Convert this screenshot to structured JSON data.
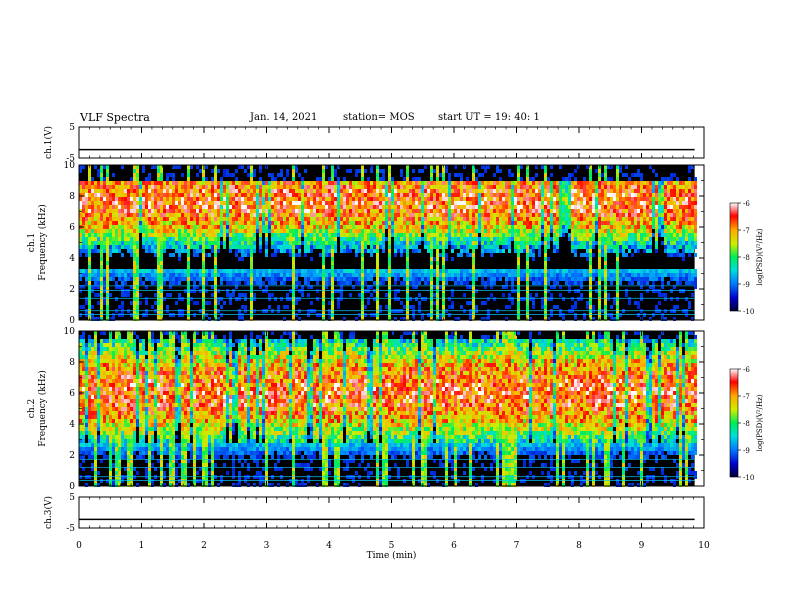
{
  "header": {
    "title": "VLF Spectra",
    "date": "Jan. 14, 2021",
    "station": "station= MOS",
    "start_ut": "start  UT =   19: 40: 1"
  },
  "colors": {
    "spectrum_stops": [
      "#000033",
      "#0000cc",
      "#0077ff",
      "#00dddd",
      "#00ee55",
      "#ccee00",
      "#ffaa00",
      "#ff0000",
      "#ffffff"
    ],
    "background": "#000000"
  },
  "chart_data": [
    {
      "type": "line",
      "panel": "ch1-voltage",
      "ylabel": "ch.1(V)",
      "ylim": [
        -5,
        5
      ],
      "y_ticks": [
        "5",
        "-5"
      ],
      "xlim": [
        0,
        10
      ],
      "series": [
        {
          "x": [
            0,
            9.85
          ],
          "values": [
            -2.3,
            -2.3
          ]
        }
      ]
    },
    {
      "type": "heatmap",
      "panel": "ch1-spectrogram",
      "ylabel": "ch.1\nFrequency (kHz)",
      "xlim": [
        0,
        10
      ],
      "ylim": [
        0,
        10
      ],
      "data_extent_x": [
        0,
        9.85
      ],
      "y_ticks": [
        "0",
        "2",
        "4",
        "6",
        "8",
        "10"
      ],
      "colorbar": {
        "label": "log(PSD)(V²/Hz)",
        "range": [
          -10,
          -6
        ],
        "ticks": [
          "-6",
          "-7",
          "-8",
          "-9",
          "-10"
        ]
      },
      "band_khz": [
        3.5,
        9.0
      ],
      "peak_khz": 7.8,
      "horizontal_lines_khz": [
        0.35,
        0.6,
        1.4,
        1.9,
        2.2
      ]
    },
    {
      "type": "heatmap",
      "panel": "ch2-spectrogram",
      "ylabel": "ch.2\nFrequency (kHz)",
      "xlim": [
        0,
        10
      ],
      "ylim": [
        0,
        10
      ],
      "data_extent_x": [
        0,
        9.85
      ],
      "y_ticks": [
        "0",
        "2",
        "4",
        "6",
        "8",
        "10"
      ],
      "colorbar": {
        "label": "log(PSD)(V²/Hz)",
        "range": [
          -10,
          -6
        ],
        "ticks": [
          "-6",
          "-7",
          "-8",
          "-9",
          "-10"
        ]
      },
      "band_khz": [
        3.0,
        9.5
      ],
      "peak_khz": 6.2,
      "horizontal_lines_khz": [
        0.35,
        0.6,
        1.2,
        1.7
      ]
    },
    {
      "type": "line",
      "panel": "ch3-voltage",
      "ylabel": "ch.3(V)",
      "ylim": [
        -5,
        5
      ],
      "y_ticks": [
        "5",
        "-5"
      ],
      "xlim": [
        0,
        10
      ],
      "xlabel": "Time (min)",
      "x_ticks": [
        "0",
        "1",
        "2",
        "3",
        "4",
        "5",
        "6",
        "7",
        "8",
        "9",
        "10"
      ],
      "series": [
        {
          "x": [
            0,
            9.85
          ],
          "values": [
            -2.2,
            -2.2
          ]
        }
      ]
    }
  ]
}
